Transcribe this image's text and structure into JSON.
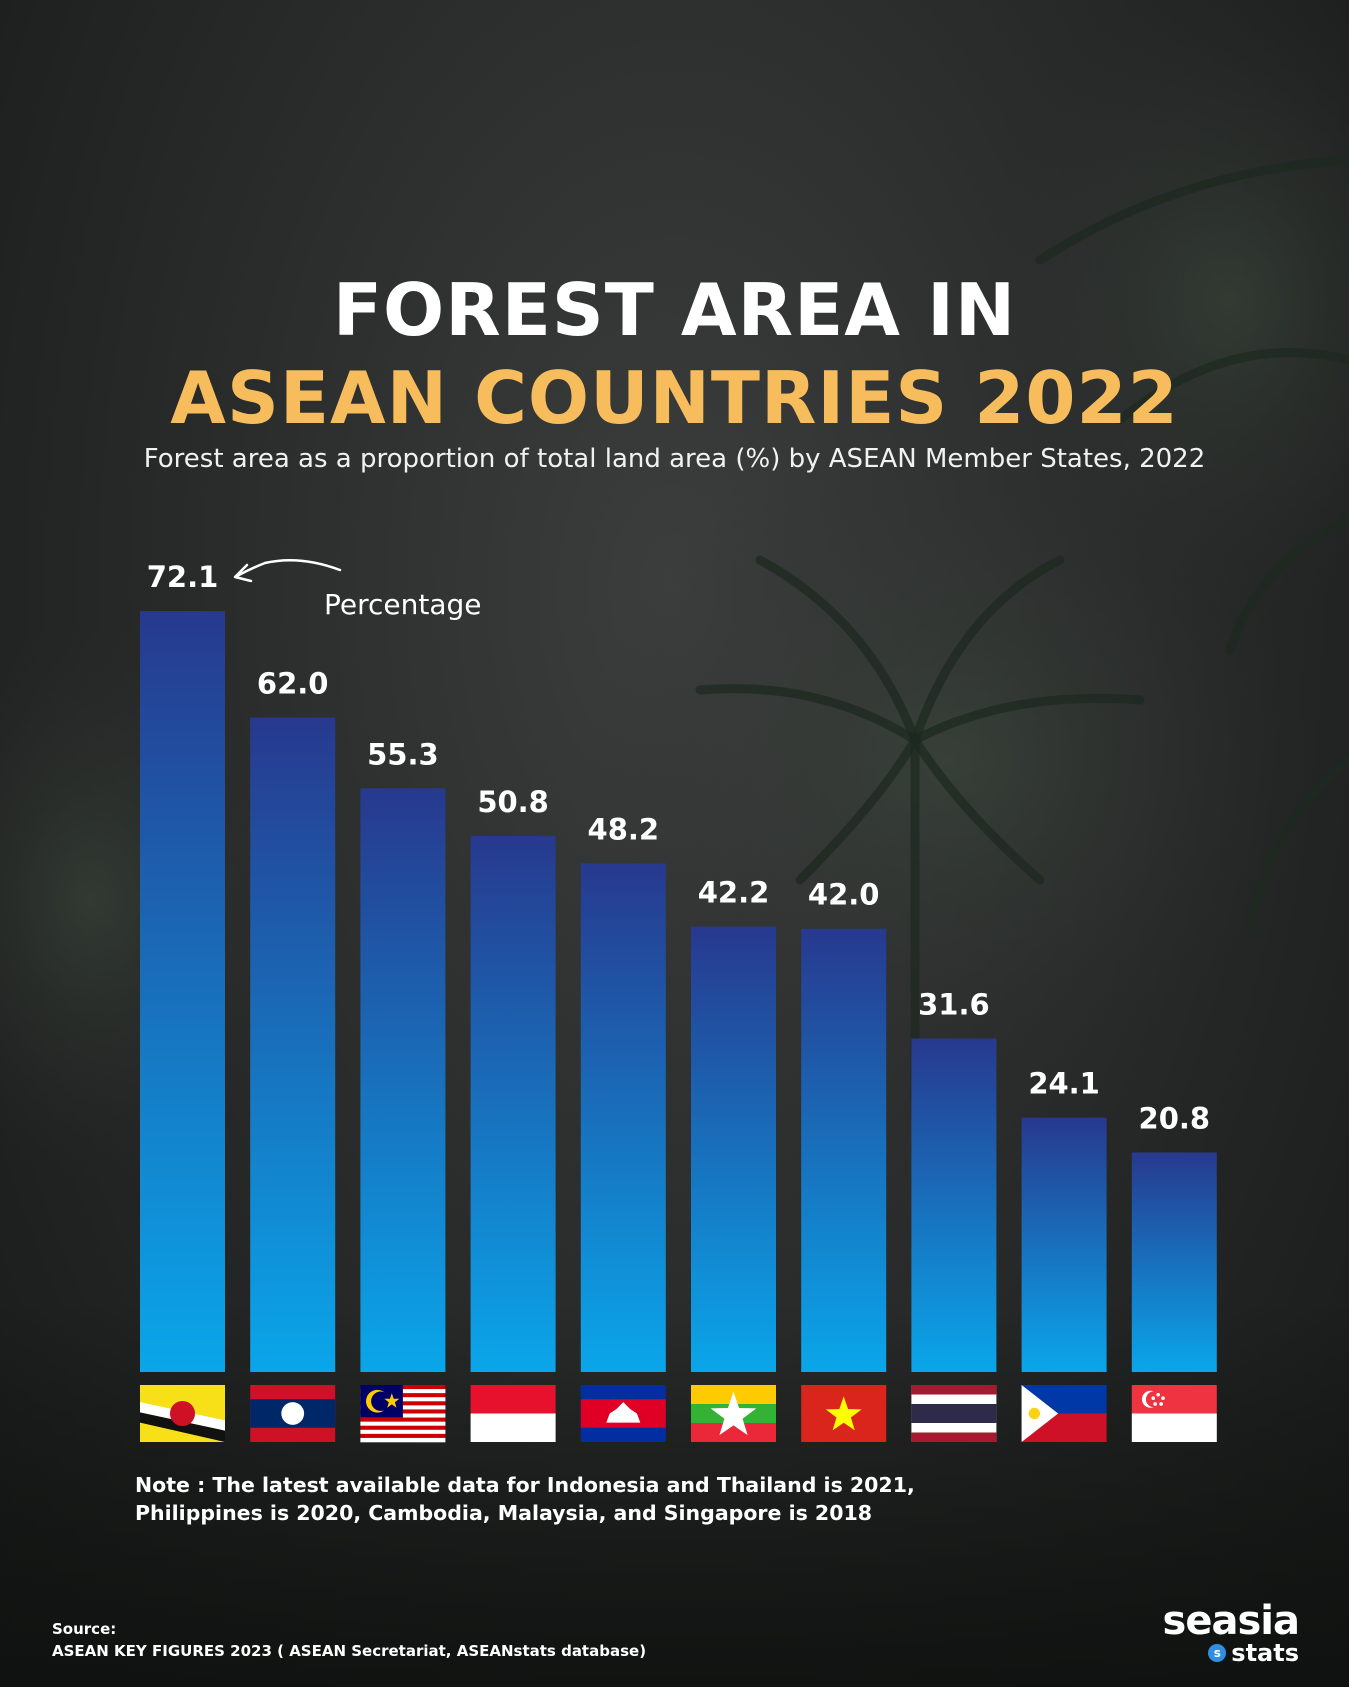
{
  "title_line1": "FOREST AREA IN",
  "title_line2": "ASEAN COUNTRIES 2022",
  "subtitle": "Forest area as a proportion of total land area (%) by ASEAN Member States, 2022",
  "annotation": "Percentage",
  "note_line1": "Note : The latest available data for Indonesia and Thailand is 2021,",
  "note_line2": "Philippines is 2020, Cambodia, Malaysia, and Singapore is 2018",
  "source_label": "Source:",
  "source_text": "ASEAN KEY FIGURES 2023 ( ASEAN Secretariat, ASEANstats database)",
  "brand": {
    "main": "seasia",
    "sub": "stats",
    "icon_letter": "s"
  },
  "colors": {
    "bar_top": "#27398e",
    "bar_bottom": "#0aa6ea",
    "title_accent": "#f7bd5c",
    "title_primary": "#ffffff"
  },
  "chart_data": {
    "type": "bar",
    "categories": [
      "brunei",
      "laos",
      "malaysia",
      "indonesia",
      "cambodia",
      "myanmar",
      "vietnam",
      "thailand",
      "philippines",
      "singapore"
    ],
    "values": [
      72.1,
      62.0,
      55.3,
      50.8,
      48.2,
      42.2,
      42.0,
      31.6,
      24.1,
      20.8
    ],
    "value_labels": [
      "72.1",
      "62.0",
      "55.3",
      "50.8",
      "48.2",
      "42.2",
      "42.0",
      "31.6",
      "24.1",
      "20.8"
    ],
    "ylim": [
      0,
      72.1
    ],
    "grid": false,
    "legend": "none",
    "category_markers": "flag icons"
  }
}
